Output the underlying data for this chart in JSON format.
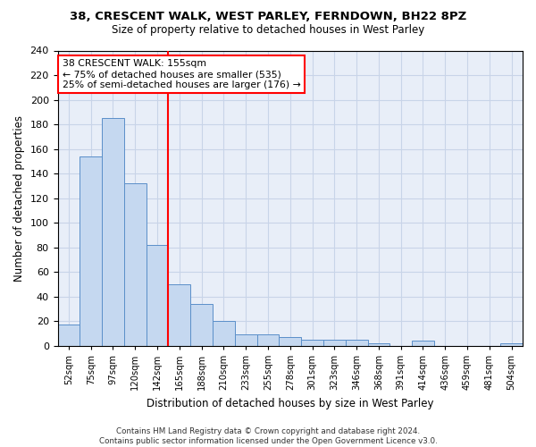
{
  "title1": "38, CRESCENT WALK, WEST PARLEY, FERNDOWN, BH22 8PZ",
  "title2": "Size of property relative to detached houses in West Parley",
  "xlabel": "Distribution of detached houses by size in West Parley",
  "ylabel": "Number of detached properties",
  "categories": [
    "52sqm",
    "75sqm",
    "97sqm",
    "120sqm",
    "142sqm",
    "165sqm",
    "188sqm",
    "210sqm",
    "233sqm",
    "255sqm",
    "278sqm",
    "301sqm",
    "323sqm",
    "346sqm",
    "368sqm",
    "391sqm",
    "414sqm",
    "436sqm",
    "459sqm",
    "481sqm",
    "504sqm"
  ],
  "values": [
    17,
    154,
    185,
    132,
    82,
    50,
    34,
    20,
    9,
    9,
    7,
    5,
    5,
    5,
    2,
    0,
    4,
    0,
    0,
    0,
    2
  ],
  "bar_color": "#c5d8f0",
  "bar_edge_color": "#5b8fc9",
  "red_line_x": 4.5,
  "annotation_text": "38 CRESCENT WALK: 155sqm\n← 75% of detached houses are smaller (535)\n25% of semi-detached houses are larger (176) →",
  "annotation_box_color": "white",
  "annotation_edge_color": "red",
  "ylim": [
    0,
    240
  ],
  "yticks": [
    0,
    20,
    40,
    60,
    80,
    100,
    120,
    140,
    160,
    180,
    200,
    220,
    240
  ],
  "grid_color": "#c8d4e8",
  "background_color": "#e8eef8",
  "footer": "Contains HM Land Registry data © Crown copyright and database right 2024.\nContains public sector information licensed under the Open Government Licence v3.0."
}
